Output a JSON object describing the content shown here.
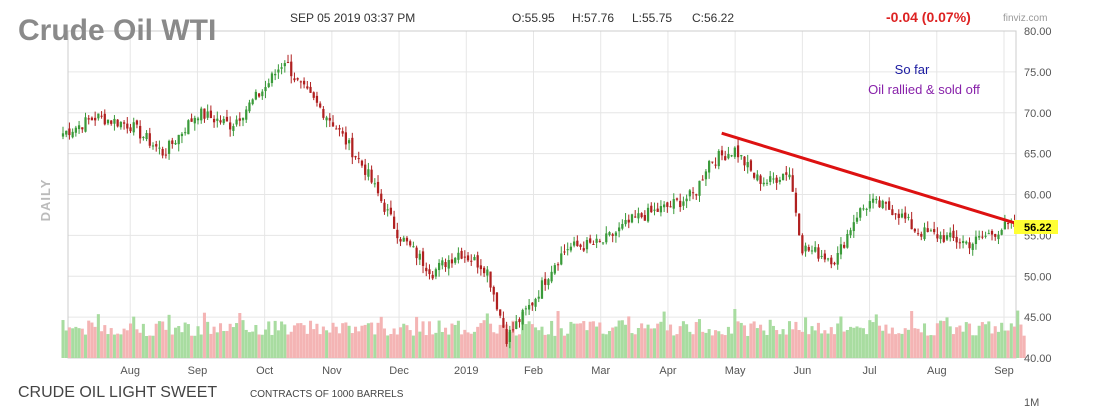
{
  "header": {
    "title": "Crude Oil WTI",
    "datetime": "SEP 05 2019 03:37 PM",
    "open": "O:55.95",
    "high": "H:57.76",
    "low": "L:55.75",
    "close": "C:56.22",
    "change": "-0.04 (0.07%)",
    "brand": "finviz.com"
  },
  "side_label": "DAILY",
  "annotations": {
    "line1": "So far",
    "line2": "Oil rallied & sold off"
  },
  "footer": {
    "instrument": "CRUDE OIL LIGHT SWEET",
    "contracts": "CONTRACTS OF 1000 BARRELS",
    "volume_axis_label": "1M"
  },
  "current_price": "56.22",
  "colors": {
    "up": "#3a9a3a",
    "down": "#b02020",
    "up_volume": "#a8dca0",
    "down_volume": "#f4b4b4",
    "trendline": "#dd1111",
    "change_negative": "#dd2222",
    "price_badge": "#ffff33",
    "annotation_blue": "#1a1aa0",
    "annotation_purple": "#8822aa"
  },
  "chart_data": {
    "type": "candlestick",
    "ylim": [
      40,
      80
    ],
    "yticks": [
      "80.00",
      "75.00",
      "70.00",
      "65.00",
      "60.00",
      "55.00",
      "50.00",
      "45.00",
      "40.00"
    ],
    "xticks": [
      "Aug",
      "Sep",
      "Oct",
      "Nov",
      "Dec",
      "2019",
      "Feb",
      "Mar",
      "Apr",
      "May",
      "Jun",
      "Jul",
      "Aug",
      "Sep"
    ],
    "grid": true,
    "series": {
      "months": [
        "2018-07",
        "2018-08",
        "2018-09",
        "2018-10",
        "2018-11",
        "2018-12",
        "2019-01",
        "2019-02",
        "2019-03",
        "2019-04",
        "2019-05",
        "2019-06",
        "2019-07",
        "2019-08",
        "2019-09"
      ],
      "path_months": [
        0,
        0.5,
        1,
        1.5,
        2,
        2.5,
        3,
        3.3,
        3.5,
        4,
        4.5,
        5,
        5.5,
        5.9,
        6.3,
        6.6,
        7,
        7.3,
        7.5,
        8,
        8.5,
        9,
        9.4,
        9.6,
        10,
        10.3,
        10.5,
        10.8,
        11,
        11.5,
        11.8,
        12,
        12.4,
        12.7,
        13,
        13.5,
        14,
        14.3
      ],
      "path_closes": [
        67.5,
        69.5,
        68.5,
        65.0,
        70.0,
        68.5,
        73.0,
        76.5,
        73.5,
        69.0,
        63.0,
        55.0,
        50.5,
        53.0,
        51.0,
        42.5,
        47.0,
        51.5,
        53.5,
        54.0,
        57.0,
        58.5,
        60.0,
        64.0,
        65.5,
        62.0,
        61.5,
        63.0,
        53.5,
        52.0,
        57.5,
        59.0,
        58.0,
        55.5,
        55.0,
        54.0,
        56.0,
        56.2
      ]
    },
    "trendline": [
      {
        "x": "2019-04-25",
        "y": 67.5
      },
      {
        "x": "2019-09-06",
        "y": 56.5
      }
    ],
    "last_close": 56.22
  }
}
